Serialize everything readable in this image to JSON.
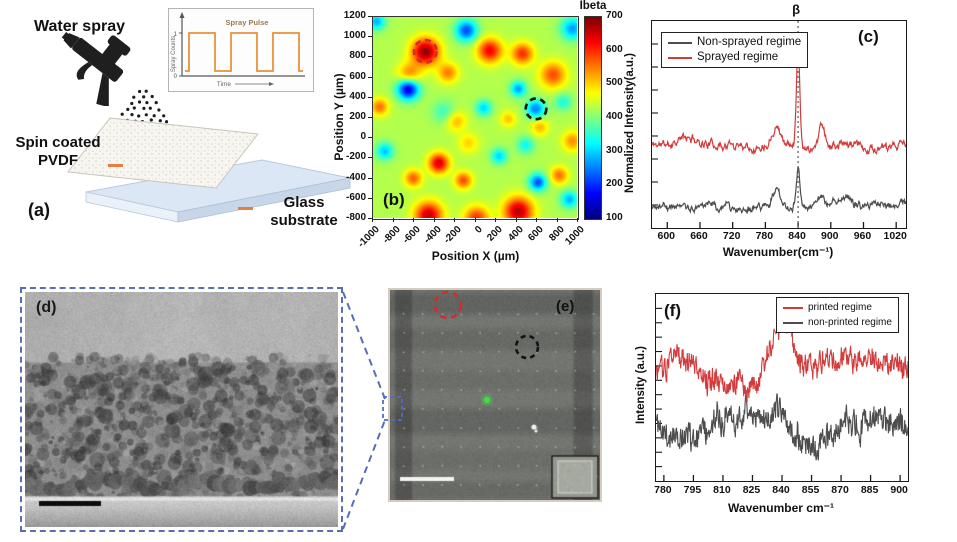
{
  "panels": {
    "a": {
      "label": "(a)",
      "water_spray_label": "Water spray",
      "spin_coated_line1": "Spin coated",
      "spin_coated_line2": "PVDF",
      "glass_line1": "Glass",
      "glass_line2": "substrate"
    },
    "b": {
      "label": "(b)"
    },
    "c": {
      "label": "(c)"
    },
    "d": {
      "label": "(d)"
    },
    "e": {
      "label": "(e)"
    },
    "f": {
      "label": "(f)"
    }
  },
  "colors": {
    "accent_orange": "#e0813f",
    "spectra_red": "#d23b3b",
    "spectra_gray": "#4d4d4d",
    "panel_d_border_blue": "#5b6db2",
    "annotation_red": "#d42a2a",
    "annotation_black": "#141414",
    "highlight_green": "#3fdc47"
  },
  "chart_data": [
    {
      "id": "a_inset",
      "type": "line",
      "title": "Spray Pulse",
      "xlabel": "Time",
      "ylabel": "Spray Counts",
      "ytick_high": "1",
      "ytick_low": "0",
      "wave": "square",
      "n_pulses": 3,
      "high": 1,
      "low": 0,
      "line_color": "#e8913c"
    },
    {
      "id": "b_map",
      "type": "heatmap",
      "colorbar_title": "Ibeta",
      "xlabel": "Position X (µm)",
      "ylabel": "Position Y (µm)",
      "xlim": [
        -1000,
        1000
      ],
      "ylim": [
        -800,
        1200
      ],
      "xticks": [
        -1000,
        -800,
        -600,
        -400,
        -200,
        0,
        200,
        400,
        600,
        800,
        1000
      ],
      "yticks": [
        1200,
        1000,
        800,
        600,
        400,
        200,
        0,
        -200,
        -400,
        -600,
        -800
      ],
      "clim": [
        100,
        700
      ],
      "colorbar_ticks": [
        700,
        600,
        500,
        400,
        300,
        200,
        100
      ],
      "base_value": 430,
      "blobs": [
        [
          -480,
          850,
          260,
          95
        ],
        [
          -640,
          620,
          130,
          80
        ],
        [
          -260,
          640,
          120,
          70
        ],
        [
          150,
          860,
          200,
          85
        ],
        [
          470,
          830,
          170,
          75
        ],
        [
          770,
          620,
          150,
          90
        ],
        [
          -930,
          300,
          130,
          60
        ],
        [
          -180,
          160,
          90,
          70
        ],
        [
          -350,
          -260,
          220,
          70
        ],
        [
          -600,
          -410,
          140,
          60
        ],
        [
          -110,
          -430,
          150,
          60
        ],
        [
          -450,
          -780,
          230,
          95
        ],
        [
          20,
          -810,
          170,
          85
        ],
        [
          430,
          -740,
          240,
          100
        ],
        [
          830,
          -380,
          130,
          60
        ],
        [
          960,
          -40,
          110,
          70
        ],
        [
          640,
          100,
          90,
          60
        ],
        [
          330,
          180,
          80,
          55
        ],
        [
          -60,
          -60,
          70,
          70
        ],
        [
          -650,
          480,
          -290,
          75
        ],
        [
          -80,
          1060,
          -210,
          75
        ],
        [
          90,
          290,
          -130,
          55
        ],
        [
          600,
          280,
          -180,
          65
        ],
        [
          960,
          1080,
          -160,
          80
        ],
        [
          -880,
          -140,
          -140,
          60
        ],
        [
          620,
          -450,
          -210,
          60
        ],
        [
          930,
          -620,
          -150,
          60
        ],
        [
          240,
          -190,
          -130,
          55
        ],
        [
          -960,
          1150,
          -150,
          60
        ],
        [
          430,
          480,
          -160,
          55
        ],
        [
          500,
          -80,
          -100,
          60
        ],
        [
          -300,
          250,
          -70,
          80
        ],
        [
          870,
          350,
          -90,
          60
        ]
      ],
      "annotations": [
        {
          "x": -480,
          "y": 850,
          "r": 110,
          "color": "#d42a2a"
        },
        {
          "x": 600,
          "y": 280,
          "r": 100,
          "color": "#141414"
        }
      ]
    },
    {
      "id": "c_spectra",
      "type": "line",
      "xlabel": "Wavenumber(cm⁻¹)",
      "ylabel": "Normalized Intensity(a.u.)",
      "xlim": [
        572,
        1038
      ],
      "xticks": [
        600,
        660,
        720,
        780,
        840,
        900,
        960,
        1020
      ],
      "marker": {
        "x": 840,
        "label": "β"
      },
      "legend": [
        {
          "name": "Non-sprayed regime",
          "color": "#4d4d4d"
        },
        {
          "name": "Sprayed regime",
          "color": "#d23b3b"
        }
      ],
      "series": [
        {
          "name": "Non-sprayed regime",
          "color": "#4d4d4d",
          "baseline": 0.105,
          "noise": 0.028,
          "smooth": 0.72,
          "seed": 21,
          "points": 470,
          "peaks": [
            [
              800,
              0.075,
              8
            ],
            [
              840,
              0.185,
              3.4
            ],
            [
              885,
              0.055,
              6
            ],
            [
              925,
              0.05,
              14
            ]
          ]
        },
        {
          "name": "Sprayed regime",
          "color": "#d23b3b",
          "baseline": 0.4,
          "noise": 0.03,
          "smooth": 0.72,
          "seed": 11,
          "points": 470,
          "peaks": [
            [
              800,
              0.105,
              8
            ],
            [
              840,
              0.52,
              3.2
            ],
            [
              884,
              0.115,
              6
            ],
            [
              640,
              0.03,
              25
            ]
          ]
        }
      ]
    },
    {
      "id": "f_spectra",
      "type": "line",
      "xlabel": "Wavenumber cm⁻¹",
      "ylabel": "Intensity (a.u.)",
      "xlim": [
        776,
        904
      ],
      "xticks": [
        780,
        795,
        810,
        825,
        840,
        855,
        870,
        885,
        900
      ],
      "legend": [
        {
          "name": "printed regime",
          "color": "#d23b3b"
        },
        {
          "name": "non-printed regime",
          "color": "#4d4d4d"
        }
      ],
      "series": [
        {
          "name": "non-printed regime",
          "color": "#4d4d4d",
          "baseline": 0.29,
          "noise": 0.125,
          "smooth": 0.3,
          "seed": 41,
          "points": 540,
          "peaks": [
            [
              841,
              0.115,
              4
            ],
            [
              858,
              -0.14,
              8
            ],
            [
              877,
              0.02,
              6
            ]
          ]
        },
        {
          "name": "printed regime",
          "color": "#d23b3b",
          "baseline": 0.58,
          "noise": 0.115,
          "smooth": 0.3,
          "seed": 31,
          "points": 540,
          "peaks": [
            [
              841,
              0.3,
              4.5
            ],
            [
              833,
              0.1,
              3
            ]
          ]
        }
      ]
    }
  ]
}
